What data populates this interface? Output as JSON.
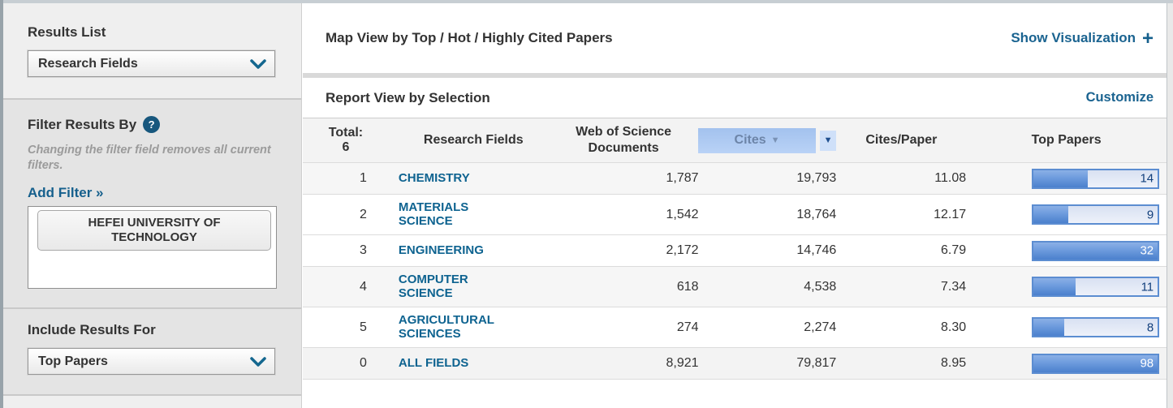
{
  "sidebar": {
    "results_list": {
      "label": "Results List",
      "selected": "Research Fields"
    },
    "filter": {
      "label": "Filter Results By",
      "help_icon": "?",
      "note": "Changing the filter field removes all current filters.",
      "add_filter_label": "Add Filter »",
      "filters": [
        {
          "label": "HEFEI UNIVERSITY OF TECHNOLOGY"
        }
      ]
    },
    "include_results": {
      "label": "Include Results For",
      "selected": "Top Papers"
    }
  },
  "main": {
    "map_view": {
      "title": "Map View by Top / Hot / Highly Cited Papers",
      "action_label": "Show Visualization",
      "action_icon": "+"
    },
    "report_view": {
      "title": "Report View by Selection",
      "action_label": "Customize"
    }
  },
  "table": {
    "total_label": "Total:",
    "total_value": "6",
    "columns": {
      "research_fields": "Research Fields",
      "wos_documents": "Web of Science Documents",
      "cites": "Cites",
      "cites_per_paper": "Cites/Paper",
      "top_papers": "Top Papers"
    },
    "sorted_column": "Cites",
    "rows": [
      {
        "rank": "1",
        "field": "CHEMISTRY",
        "wos_documents": "1,787",
        "cites": "19,793",
        "cites_per_paper": "11.08",
        "top_papers": "14",
        "bar_percent": 44
      },
      {
        "rank": "2",
        "field": "MATERIALS SCIENCE",
        "wos_documents": "1,542",
        "cites": "18,764",
        "cites_per_paper": "12.17",
        "top_papers": "9",
        "bar_percent": 28
      },
      {
        "rank": "3",
        "field": "ENGINEERING",
        "wos_documents": "2,172",
        "cites": "14,746",
        "cites_per_paper": "6.79",
        "top_papers": "32",
        "bar_percent": 100
      },
      {
        "rank": "4",
        "field": "COMPUTER SCIENCE",
        "wos_documents": "618",
        "cites": "4,538",
        "cites_per_paper": "7.34",
        "top_papers": "11",
        "bar_percent": 34
      },
      {
        "rank": "5",
        "field": "AGRICULTURAL SCIENCES",
        "wos_documents": "274",
        "cites": "2,274",
        "cites_per_paper": "8.30",
        "top_papers": "8",
        "bar_percent": 25
      },
      {
        "rank": "0",
        "field": "ALL FIELDS",
        "wos_documents": "8,921",
        "cites": "79,817",
        "cites_per_paper": "8.95",
        "top_papers": "98",
        "bar_percent": 100
      }
    ]
  },
  "colors": {
    "link_blue": "#1a6390",
    "field_link_blue": "#0e6390",
    "sort_highlight": "#aac7f0",
    "bar_border": "#5c8dd1",
    "bar_label_dark": "#123f7c",
    "bar_label_light": "#ffffff"
  }
}
